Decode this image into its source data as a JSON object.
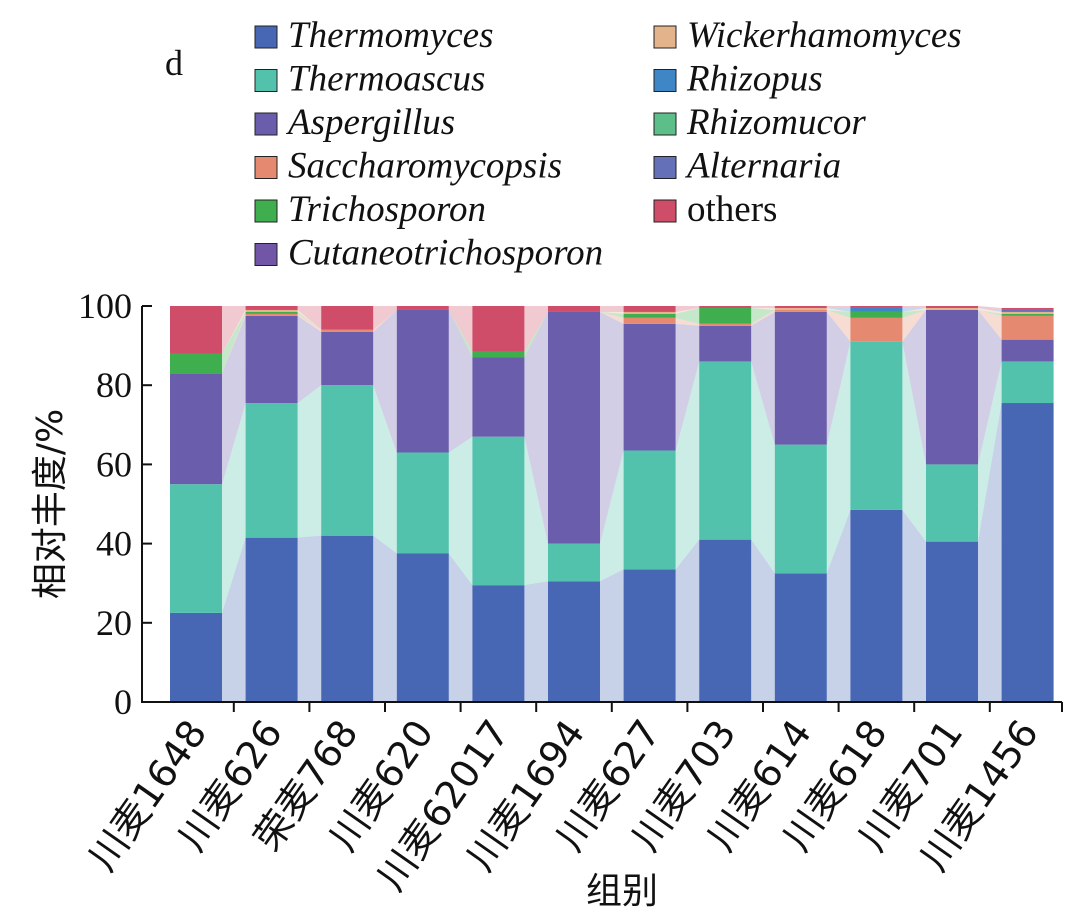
{
  "chart_data": {
    "type": "bar",
    "stacked": true,
    "panel_label": "d",
    "xlabel": "组别",
    "ylabel": "相对丰度/%",
    "ylim": [
      0,
      100
    ],
    "yticks": [
      0,
      20,
      40,
      60,
      80,
      100
    ],
    "legend_position": "top",
    "categories": [
      "川麦1648",
      "川麦626",
      "荣麦768",
      "川麦620",
      "川麦62017",
      "川麦1694",
      "川麦627",
      "川麦703",
      "川麦614",
      "川麦618",
      "川麦701",
      "川麦1456"
    ],
    "series": [
      {
        "name": "Thermomyces",
        "color": "#4767b4",
        "values": [
          22.5,
          41.5,
          42,
          37.5,
          29.5,
          30.5,
          33.5,
          41,
          32.5,
          48.5,
          40.5,
          75.5
        ]
      },
      {
        "name": "Thermoascus",
        "color": "#52c2ad",
        "values": [
          32.5,
          34,
          38,
          25.5,
          37.5,
          9.5,
          30,
          45,
          32.5,
          42.5,
          19.5,
          10.5
        ]
      },
      {
        "name": "Aspergillus",
        "color": "#6a5eac",
        "values": [
          28,
          22,
          13.5,
          36,
          20,
          58.5,
          32,
          9,
          33.5,
          0,
          39,
          5.5
        ]
      },
      {
        "name": "Saccharomycopsis",
        "color": "#e58a70",
        "values": [
          0,
          0.5,
          0.5,
          0,
          0,
          0,
          1.5,
          0.5,
          0.5,
          6,
          0,
          6
        ]
      },
      {
        "name": "Trichosporon",
        "color": "#3fae4f",
        "values": [
          5,
          0.5,
          0,
          0,
          1.5,
          0,
          1,
          4,
          0,
          1.5,
          0,
          0.5
        ]
      },
      {
        "name": "Cutaneotrichosporon",
        "color": "#7156a7",
        "values": [
          0,
          0,
          0,
          0,
          0,
          0,
          0,
          0,
          0,
          0,
          0,
          0
        ]
      },
      {
        "name": "Wickerhamomyces",
        "color": "#e3b38c",
        "values": [
          0,
          0.5,
          0,
          0,
          0,
          0,
          0.5,
          0,
          0.5,
          0,
          0.5,
          0.5
        ]
      },
      {
        "name": "Rhizopus",
        "color": "#3f86c6",
        "values": [
          0,
          0,
          0,
          0,
          0,
          0,
          0,
          0,
          0,
          1,
          0,
          0
        ]
      },
      {
        "name": "Rhizomucor",
        "color": "#5cbf8a",
        "values": [
          0,
          0,
          0,
          0,
          0,
          0,
          0,
          0,
          0,
          0,
          0,
          0
        ]
      },
      {
        "name": "Alternaria",
        "color": "#6470b8",
        "values": [
          0,
          0,
          0,
          0,
          0,
          0,
          0,
          0,
          0,
          0,
          0,
          0.5
        ]
      },
      {
        "name": "others",
        "color": "#cf4d68",
        "values": [
          12,
          1,
          6,
          1,
          11.5,
          1.5,
          1.5,
          0.5,
          0.5,
          0.5,
          0.5,
          0.5
        ]
      }
    ]
  }
}
